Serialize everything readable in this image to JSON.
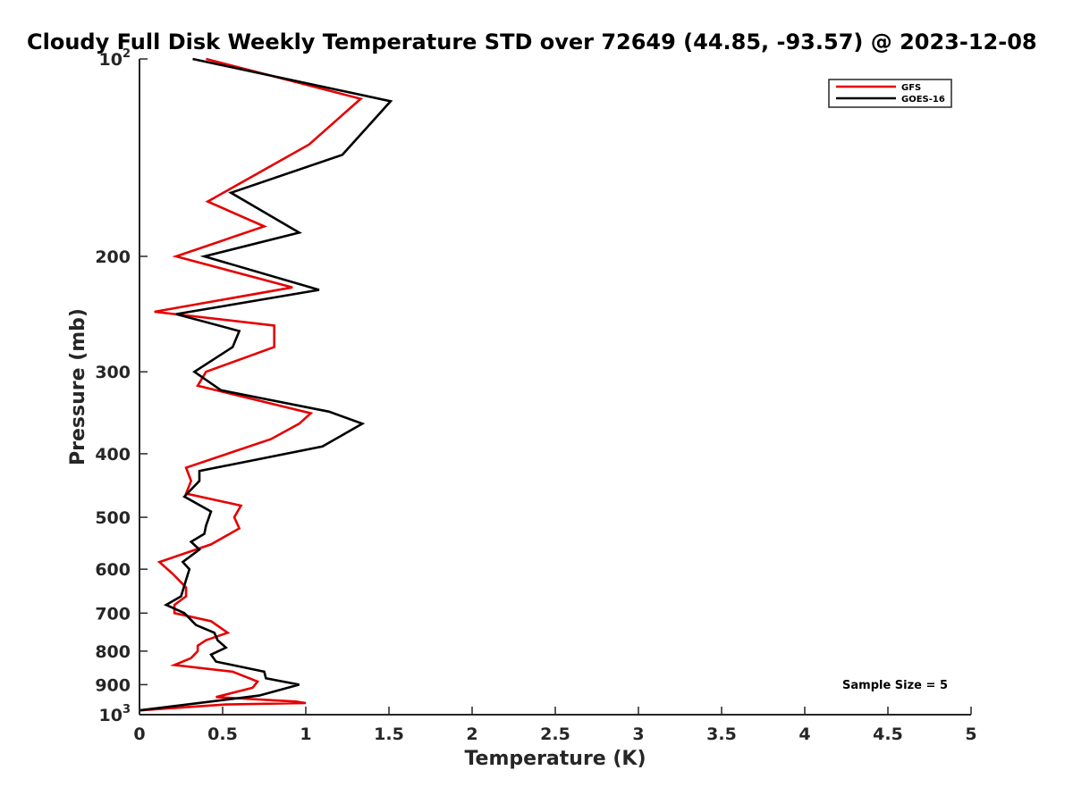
{
  "chart_data": {
    "type": "line",
    "title": "Cloudy Full Disk Weekly Temperature STD over 72649 (44.85, -93.57) @ 2023-12-08",
    "xlabel": "Temperature (K)",
    "ylabel": "Pressure (mb)",
    "xlim": [
      0,
      5
    ],
    "ylim": [
      100,
      1000
    ],
    "yscale": "log",
    "y_reversed": true,
    "xticks": [
      0,
      0.5,
      1,
      1.5,
      2,
      2.5,
      3,
      3.5,
      4,
      4.5,
      5
    ],
    "xtick_labels": [
      "0",
      "0.5",
      "1",
      "1.5",
      "2",
      "2.5",
      "3",
      "3.5",
      "4",
      "4.5",
      "5"
    ],
    "yticks": [
      {
        "value": 100,
        "base": "10",
        "exp": "2"
      },
      {
        "value": 200,
        "label": "200"
      },
      {
        "value": 300,
        "label": "300"
      },
      {
        "value": 400,
        "label": "400"
      },
      {
        "value": 500,
        "label": "500"
      },
      {
        "value": 600,
        "label": "600"
      },
      {
        "value": 700,
        "label": "700"
      },
      {
        "value": 800,
        "label": "800"
      },
      {
        "value": 900,
        "label": "900"
      },
      {
        "value": 1000,
        "base": "10",
        "exp": "3"
      }
    ],
    "legend_position": "top-right",
    "annotation": "Sample Size = 5",
    "grid": false,
    "series": [
      {
        "name": "GFS",
        "color": "#e60000",
        "points": [
          [
            0.4,
            100
          ],
          [
            1.33,
            115
          ],
          [
            1.02,
            135
          ],
          [
            0.41,
            165
          ],
          [
            0.75,
            180
          ],
          [
            0.22,
            200
          ],
          [
            0.92,
            223
          ],
          [
            0.09,
            243
          ],
          [
            0.81,
            255
          ],
          [
            0.81,
            275
          ],
          [
            0.4,
            300
          ],
          [
            0.35,
            315
          ],
          [
            1.03,
            347
          ],
          [
            0.96,
            360
          ],
          [
            0.79,
            380
          ],
          [
            0.28,
            420
          ],
          [
            0.31,
            440
          ],
          [
            0.28,
            460
          ],
          [
            0.61,
            480
          ],
          [
            0.57,
            500
          ],
          [
            0.6,
            520
          ],
          [
            0.43,
            550
          ],
          [
            0.12,
            585
          ],
          [
            0.2,
            610
          ],
          [
            0.28,
            640
          ],
          [
            0.28,
            660
          ],
          [
            0.21,
            680
          ],
          [
            0.21,
            700
          ],
          [
            0.43,
            720
          ],
          [
            0.53,
            750
          ],
          [
            0.4,
            770
          ],
          [
            0.35,
            785
          ],
          [
            0.35,
            800
          ],
          [
            0.31,
            820
          ],
          [
            0.21,
            840
          ],
          [
            0.56,
            860
          ],
          [
            0.71,
            890
          ],
          [
            0.68,
            910
          ],
          [
            0.46,
            940
          ],
          [
            0.94,
            955
          ],
          [
            1.0,
            960
          ],
          [
            0.52,
            965
          ],
          [
            0.0,
            985
          ]
        ]
      },
      {
        "name": "GOES-16",
        "color": "#000000",
        "points": [
          [
            0.32,
            100
          ],
          [
            1.51,
            116
          ],
          [
            1.22,
            140
          ],
          [
            0.55,
            160
          ],
          [
            0.96,
            184
          ],
          [
            0.39,
            200
          ],
          [
            1.08,
            225
          ],
          [
            0.22,
            245
          ],
          [
            0.6,
            260
          ],
          [
            0.56,
            275
          ],
          [
            0.33,
            300
          ],
          [
            0.49,
            320
          ],
          [
            1.14,
            345
          ],
          [
            1.34,
            360
          ],
          [
            1.1,
            390
          ],
          [
            0.36,
            425
          ],
          [
            0.36,
            440
          ],
          [
            0.27,
            465
          ],
          [
            0.43,
            490
          ],
          [
            0.4,
            515
          ],
          [
            0.39,
            530
          ],
          [
            0.31,
            545
          ],
          [
            0.36,
            560
          ],
          [
            0.26,
            585
          ],
          [
            0.3,
            600
          ],
          [
            0.27,
            635
          ],
          [
            0.25,
            660
          ],
          [
            0.16,
            680
          ],
          [
            0.27,
            700
          ],
          [
            0.34,
            730
          ],
          [
            0.45,
            750
          ],
          [
            0.47,
            770
          ],
          [
            0.52,
            790
          ],
          [
            0.43,
            810
          ],
          [
            0.46,
            830
          ],
          [
            0.75,
            860
          ],
          [
            0.76,
            880
          ],
          [
            0.96,
            900
          ],
          [
            0.72,
            935
          ],
          [
            0.0,
            985
          ]
        ]
      }
    ]
  }
}
